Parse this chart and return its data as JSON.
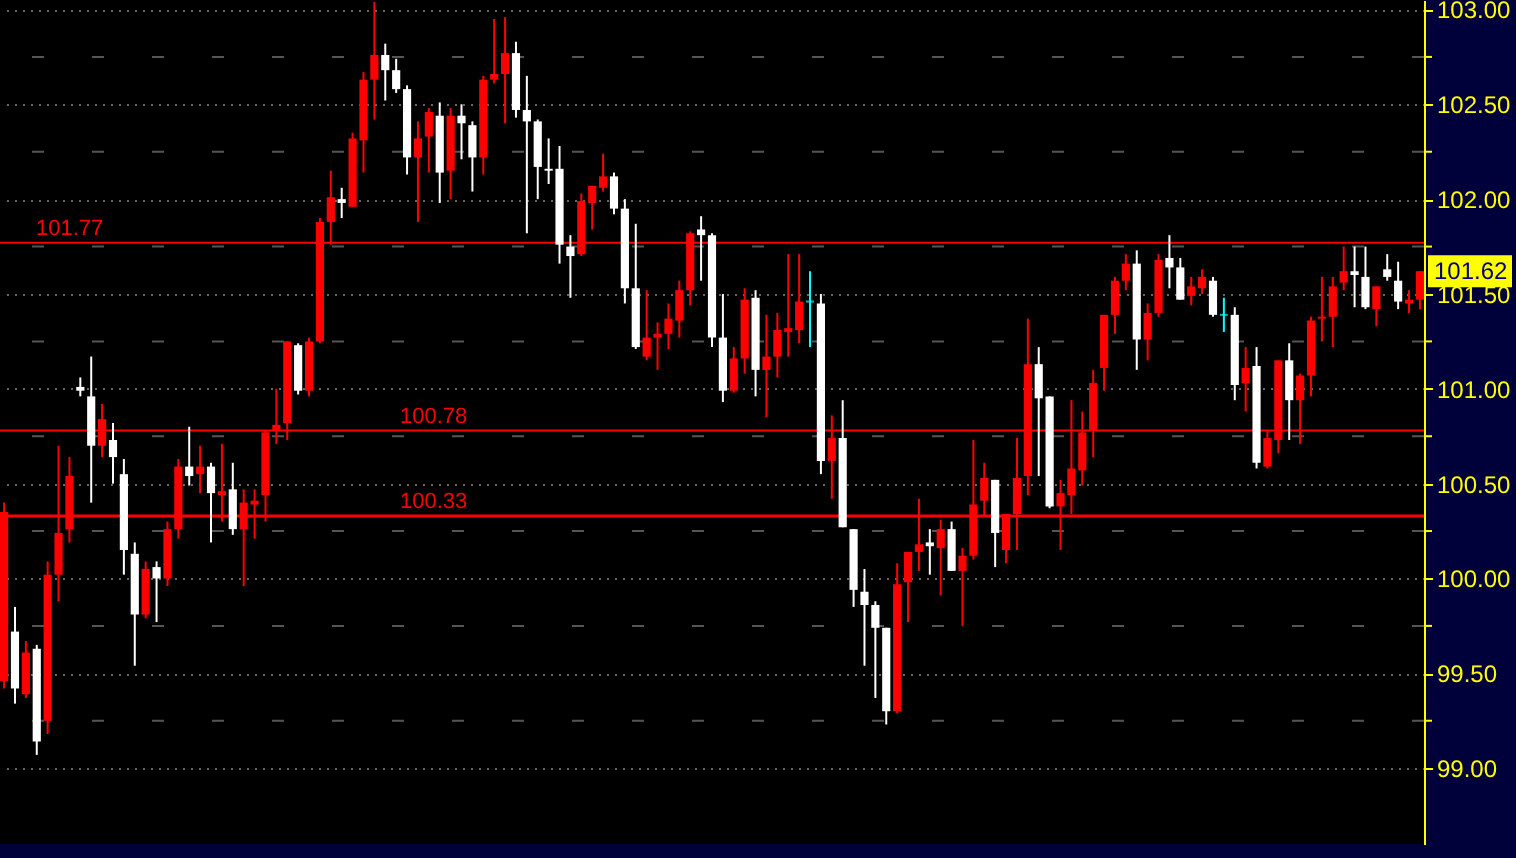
{
  "chart_data": {
    "type": "candlestick",
    "categories": [
      null,
      null,
      null,
      null,
      null,
      null,
      null,
      null,
      null,
      null,
      null,
      null,
      null,
      null,
      null,
      null,
      null,
      null,
      null,
      null,
      null,
      null,
      null,
      null,
      null,
      null,
      null,
      null,
      null,
      null,
      null,
      null,
      null,
      null,
      null,
      null,
      null,
      null,
      null,
      null,
      null,
      null,
      null,
      null,
      null,
      null,
      null,
      null,
      null,
      null,
      null,
      null,
      null,
      null,
      null,
      null,
      null,
      null,
      null,
      null,
      null,
      null,
      null,
      null,
      null,
      null,
      null,
      null,
      null,
      null,
      null,
      null,
      null,
      null,
      null,
      null,
      null,
      null,
      null,
      null,
      null,
      null,
      null,
      null,
      null,
      null,
      null,
      null,
      null,
      null,
      null,
      null,
      null,
      null,
      null,
      null,
      null,
      null,
      null,
      null,
      null,
      null,
      null,
      null,
      null,
      null,
      null,
      null,
      null,
      null,
      null,
      null,
      null,
      null,
      null,
      null,
      null,
      null,
      null,
      null,
      null,
      null,
      null,
      null,
      null,
      null,
      null,
      null,
      null,
      null,
      null
    ],
    "ohlc": [
      [
        99.46,
        100.4,
        99.42,
        100.35
      ],
      [
        99.72,
        99.85,
        99.34,
        99.42
      ],
      [
        99.39,
        99.67,
        99.37,
        99.61
      ],
      [
        99.63,
        99.65,
        99.07,
        99.14
      ],
      [
        99.25,
        100.09,
        99.18,
        100.02
      ],
      [
        100.02,
        100.7,
        99.88,
        100.24
      ],
      [
        100.26,
        100.64,
        100.19,
        100.54
      ],
      [
        101.01,
        101.06,
        100.96,
        100.99
      ],
      [
        100.96,
        101.17,
        100.4,
        100.7
      ],
      [
        100.7,
        100.92,
        100.64,
        100.84
      ],
      [
        100.73,
        100.82,
        100.5,
        100.64
      ],
      [
        100.55,
        100.63,
        100.02,
        100.15
      ],
      [
        100.13,
        100.19,
        99.54,
        99.81
      ],
      [
        99.81,
        100.09,
        99.79,
        100.05
      ],
      [
        100.06,
        100.09,
        99.77,
        100.0
      ],
      [
        100.0,
        100.3,
        99.96,
        100.26
      ],
      [
        100.26,
        100.63,
        100.21,
        100.59
      ],
      [
        100.59,
        100.8,
        100.49,
        100.54
      ],
      [
        100.55,
        100.7,
        100.45,
        100.59
      ],
      [
        100.59,
        100.61,
        100.19,
        100.45
      ],
      [
        100.44,
        100.71,
        100.3,
        100.46
      ],
      [
        100.47,
        100.61,
        100.23,
        100.26
      ],
      [
        100.26,
        100.47,
        99.96,
        100.4
      ],
      [
        100.39,
        100.47,
        100.21,
        100.41
      ],
      [
        100.44,
        100.78,
        100.3,
        100.77
      ],
      [
        100.78,
        101.0,
        100.71,
        100.81
      ],
      [
        100.82,
        101.25,
        100.73,
        101.25
      ],
      [
        101.23,
        101.24,
        100.97,
        100.99
      ],
      [
        100.99,
        101.27,
        100.96,
        101.25
      ],
      [
        101.25,
        101.9,
        101.24,
        101.88
      ],
      [
        101.88,
        102.15,
        101.76,
        102.01
      ],
      [
        102.0,
        102.06,
        101.9,
        101.98
      ],
      [
        101.96,
        102.35,
        101.96,
        102.32
      ],
      [
        102.31,
        102.67,
        102.14,
        102.63
      ],
      [
        102.63,
        103.04,
        102.42,
        102.76
      ],
      [
        102.76,
        102.82,
        102.52,
        102.68
      ],
      [
        102.68,
        102.74,
        102.56,
        102.58
      ],
      [
        102.58,
        102.6,
        102.13,
        102.22
      ],
      [
        102.22,
        102.41,
        101.88,
        102.32
      ],
      [
        102.33,
        102.48,
        102.14,
        102.46
      ],
      [
        102.44,
        102.51,
        101.98,
        102.14
      ],
      [
        102.15,
        102.48,
        102.0,
        102.44
      ],
      [
        102.44,
        102.5,
        102.21,
        102.4
      ],
      [
        102.39,
        102.41,
        102.04,
        102.22
      ],
      [
        102.22,
        102.65,
        102.13,
        102.63
      ],
      [
        102.63,
        102.95,
        102.61,
        102.66
      ],
      [
        102.66,
        102.96,
        102.4,
        102.77
      ],
      [
        102.77,
        102.83,
        102.43,
        102.47
      ],
      [
        102.47,
        102.65,
        101.82,
        102.41
      ],
      [
        102.41,
        102.42,
        102.0,
        102.17
      ],
      [
        102.16,
        102.32,
        102.08,
        102.15
      ],
      [
        102.16,
        102.28,
        101.66,
        101.76
      ],
      [
        101.75,
        101.81,
        101.48,
        101.7
      ],
      [
        101.71,
        102.03,
        101.7,
        101.99
      ],
      [
        101.98,
        102.07,
        101.84,
        102.07
      ],
      [
        102.06,
        102.24,
        102.04,
        102.12
      ],
      [
        102.12,
        102.14,
        101.92,
        101.95
      ],
      [
        101.95,
        102.0,
        101.45,
        101.53
      ],
      [
        101.53,
        101.87,
        101.21,
        101.22
      ],
      [
        101.17,
        101.52,
        101.15,
        101.27
      ],
      [
        101.27,
        101.35,
        101.1,
        101.29
      ],
      [
        101.29,
        101.45,
        101.21,
        101.37
      ],
      [
        101.36,
        101.57,
        101.27,
        101.52
      ],
      [
        101.52,
        101.83,
        101.44,
        101.82
      ],
      [
        101.84,
        101.91,
        101.57,
        101.81
      ],
      [
        101.81,
        101.82,
        101.22,
        101.27
      ],
      [
        101.27,
        101.5,
        100.93,
        100.99
      ],
      [
        100.99,
        101.22,
        100.98,
        101.16
      ],
      [
        101.16,
        101.53,
        101.08,
        101.47
      ],
      [
        101.48,
        101.52,
        100.96,
        101.1
      ],
      [
        101.1,
        101.39,
        100.85,
        101.17
      ],
      [
        101.17,
        101.4,
        101.06,
        101.31
      ],
      [
        101.3,
        101.71,
        101.17,
        101.32
      ],
      [
        101.31,
        101.71,
        101.24,
        101.46
      ],
      [
        101.46,
        101.62,
        101.22,
        101.46
      ],
      [
        101.45,
        101.5,
        100.55,
        100.62
      ],
      [
        100.62,
        100.86,
        100.42,
        100.74
      ],
      [
        100.74,
        100.94,
        100.27,
        100.27
      ],
      [
        100.26,
        100.26,
        99.85,
        99.94
      ],
      [
        99.93,
        100.05,
        99.54,
        99.86
      ],
      [
        99.86,
        99.88,
        99.37,
        99.74
      ],
      [
        99.74,
        99.74,
        99.23,
        99.3
      ],
      [
        99.3,
        100.08,
        99.29,
        99.97
      ],
      [
        99.98,
        100.14,
        99.77,
        100.14
      ],
      [
        100.14,
        100.42,
        100.04,
        100.18
      ],
      [
        100.19,
        100.26,
        100.02,
        100.17
      ],
      [
        100.16,
        100.31,
        99.91,
        100.26
      ],
      [
        100.26,
        100.3,
        100.04,
        100.04
      ],
      [
        100.04,
        100.16,
        99.75,
        100.12
      ],
      [
        100.12,
        100.73,
        100.1,
        100.39
      ],
      [
        100.41,
        100.61,
        100.33,
        100.53
      ],
      [
        100.52,
        100.52,
        100.06,
        100.24
      ],
      [
        100.15,
        100.34,
        100.08,
        100.34
      ],
      [
        100.34,
        100.74,
        100.15,
        100.53
      ],
      [
        100.54,
        101.37,
        100.44,
        101.13
      ],
      [
        101.13,
        101.22,
        100.54,
        100.95
      ],
      [
        100.96,
        100.96,
        100.37,
        100.38
      ],
      [
        100.38,
        100.52,
        100.15,
        100.45
      ],
      [
        100.44,
        100.94,
        100.34,
        100.58
      ],
      [
        100.57,
        100.88,
        100.49,
        100.77
      ],
      [
        100.78,
        101.1,
        100.64,
        101.03
      ],
      [
        101.11,
        101.39,
        100.99,
        101.39
      ],
      [
        101.39,
        101.59,
        101.29,
        101.57
      ],
      [
        101.57,
        101.71,
        101.52,
        101.66
      ],
      [
        101.66,
        101.73,
        101.1,
        101.26
      ],
      [
        101.26,
        101.45,
        101.15,
        101.4
      ],
      [
        101.4,
        101.71,
        101.38,
        101.68
      ],
      [
        101.69,
        101.81,
        101.53,
        101.64
      ],
      [
        101.64,
        101.69,
        101.47,
        101.47
      ],
      [
        101.49,
        101.59,
        101.44,
        101.54
      ],
      [
        101.53,
        101.63,
        101.5,
        101.59
      ],
      [
        101.57,
        101.59,
        101.38,
        101.39
      ],
      [
        101.39,
        101.48,
        101.3,
        101.39
      ],
      [
        101.39,
        101.43,
        100.94,
        101.02
      ],
      [
        101.03,
        101.22,
        100.88,
        101.11
      ],
      [
        101.12,
        101.22,
        100.58,
        100.61
      ],
      [
        100.59,
        100.78,
        100.58,
        100.74
      ],
      [
        100.73,
        101.15,
        100.66,
        101.15
      ],
      [
        101.15,
        101.24,
        100.73,
        100.94
      ],
      [
        100.94,
        101.08,
        100.71,
        101.07
      ],
      [
        101.07,
        101.38,
        100.96,
        101.36
      ],
      [
        101.37,
        101.59,
        101.25,
        101.38
      ],
      [
        101.38,
        101.59,
        101.22,
        101.54
      ],
      [
        101.56,
        101.75,
        101.52,
        101.62
      ],
      [
        101.62,
        101.75,
        101.43,
        101.6
      ],
      [
        101.59,
        101.75,
        101.42,
        101.43
      ],
      [
        101.42,
        101.54,
        101.33,
        101.54
      ],
      [
        101.63,
        101.71,
        101.57,
        101.59
      ],
      [
        101.57,
        101.67,
        101.42,
        101.46
      ],
      [
        101.45,
        101.52,
        101.4,
        101.47
      ],
      [
        101.47,
        101.62,
        101.42,
        101.62
      ]
    ],
    "colors": [
      "#ff0000",
      "#ffffff",
      "#ff0000",
      "#ffffff",
      "#ff0000",
      "#ff0000",
      "#ff0000",
      "#ffffff",
      "#ffffff",
      "#ff0000",
      "#ffffff",
      "#ffffff",
      "#ffffff",
      "#ff0000",
      "#ffffff",
      "#ff0000",
      "#ff0000",
      "#ffffff",
      "#ff0000",
      "#ffffff",
      "#ff0000",
      "#ffffff",
      "#ff0000",
      "#ff0000",
      "#ff0000",
      "#ff0000",
      "#ff0000",
      "#ffffff",
      "#ff0000",
      "#ff0000",
      "#ff0000",
      "#ffffff",
      "#ff0000",
      "#ff0000",
      "#ff0000",
      "#ffffff",
      "#ffffff",
      "#ffffff",
      "#ff0000",
      "#ff0000",
      "#ffffff",
      "#ff0000",
      "#ffffff",
      "#ffffff",
      "#ff0000",
      "#ff0000",
      "#ff0000",
      "#ffffff",
      "#ffffff",
      "#ffffff",
      "#ffffff",
      "#ffffff",
      "#ffffff",
      "#ff0000",
      "#ff0000",
      "#ff0000",
      "#ffffff",
      "#ffffff",
      "#ffffff",
      "#ff0000",
      "#ff0000",
      "#ff0000",
      "#ff0000",
      "#ff0000",
      "#ffffff",
      "#ffffff",
      "#ffffff",
      "#ff0000",
      "#ff0000",
      "#ffffff",
      "#ff0000",
      "#ff0000",
      "#ff0000",
      "#ff0000",
      "#00ffff",
      "#ffffff",
      "#ff0000",
      "#ffffff",
      "#ffffff",
      "#ffffff",
      "#ffffff",
      "#ffffff",
      "#ff0000",
      "#ff0000",
      "#ff0000",
      "#ffffff",
      "#ff0000",
      "#ffffff",
      "#ff0000",
      "#ff0000",
      "#ff0000",
      "#ffffff",
      "#ff0000",
      "#ff0000",
      "#ff0000",
      "#ffffff",
      "#ffffff",
      "#ff0000",
      "#ff0000",
      "#ff0000",
      "#ff0000",
      "#ff0000",
      "#ff0000",
      "#ff0000",
      "#ffffff",
      "#ff0000",
      "#ff0000",
      "#ffffff",
      "#ffffff",
      "#ff0000",
      "#ff0000",
      "#ffffff",
      "#00ffff",
      "#ffffff",
      "#ff0000",
      "#ffffff",
      "#ff0000",
      "#ff0000",
      "#ffffff",
      "#ff0000",
      "#ff0000",
      "#ff0000",
      "#ff0000",
      "#ff0000",
      "#ffffff",
      "#ffffff",
      "#ff0000",
      "#ffffff",
      "#ffffff",
      "#ff0000",
      "#ff0000"
    ],
    "ylim": [
      98.6,
      103.05
    ],
    "yticks": [
      {
        "value": 99,
        "label": "99.00"
      },
      {
        "value": 99.25,
        "label": null
      },
      {
        "value": 99.5,
        "label": "99.50"
      },
      {
        "value": 99.75,
        "label": null
      },
      {
        "value": 100,
        "label": "100.00"
      },
      {
        "value": 100.25,
        "label": null
      },
      {
        "value": 100.5,
        "label": "100.50"
      },
      {
        "value": 100.75,
        "label": null
      },
      {
        "value": 101,
        "label": "101.00"
      },
      {
        "value": 101.25,
        "label": null
      },
      {
        "value": 101.5,
        "label": "101.50"
      },
      {
        "value": 101.75,
        "label": null
      },
      {
        "value": 102,
        "label": "102.00"
      },
      {
        "value": 102.25,
        "label": null
      },
      {
        "value": 102.5,
        "label": "102.50"
      },
      {
        "value": 102.75,
        "label": null
      },
      {
        "value": 103,
        "label": "103.00"
      }
    ],
    "grid": "y",
    "ref_lines": [
      {
        "axis": "y",
        "value": 101.77,
        "label": "101.77",
        "color": "#ff0000"
      },
      {
        "axis": "y",
        "value": 100.78,
        "label": "100.78",
        "color": "#ff0000"
      },
      {
        "axis": "y",
        "value": 100.33,
        "label": "100.33",
        "color": "#ff0000"
      }
    ],
    "annotations": [
      {
        "text": "101.62",
        "y": 101.62
      }
    ]
  }
}
